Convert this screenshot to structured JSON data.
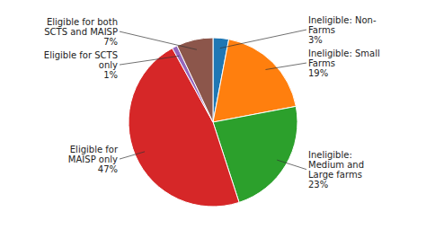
{
  "chart_data": {
    "type": "pie",
    "categories": [
      "Ineligible: Non-\nFarms\n3%",
      "Ineligible: Small\nFarms\n19%",
      "Ineligible:\nMedium and\nLarge farms\n23%",
      "Eligible for\nMAISP only\n47%",
      "Eligible for SCTS\nonly\n1%",
      "Eligible for both\nSCTS and MAISP\n7%"
    ],
    "values": [
      3,
      19,
      23,
      47,
      1,
      7
    ]
  }
}
